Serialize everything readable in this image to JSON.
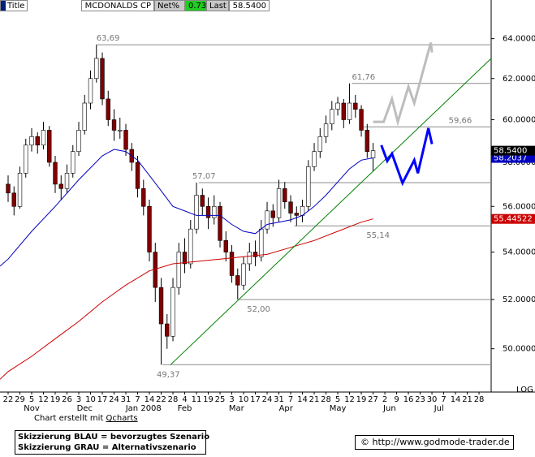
{
  "chart_data": {
    "type": "candlestick",
    "header": {
      "title": "Title",
      "symbol": "MCDONALDS CP",
      "net_label": "Net%",
      "net_value": 0.73,
      "last_label": "Last",
      "last_value": "58.5400"
    },
    "log_scale": true,
    "axis_label": "LOG",
    "up_color": "#ffffff",
    "down_color": "#800000",
    "xlim": [
      -0.69,
      41.03
    ],
    "ylim": [
      48.4,
      66.0
    ],
    "yticks": [
      {
        "value": 50,
        "label": "50.0000"
      },
      {
        "value": 52,
        "label": "52.0000"
      },
      {
        "value": 54,
        "label": "54.0000"
      },
      {
        "value": 56,
        "label": "56.0000"
      },
      {
        "value": 58,
        "label": "58.0000"
      },
      {
        "value": 60,
        "label": "60.0000"
      },
      {
        "value": 62,
        "label": "62.0000"
      },
      {
        "value": 64,
        "label": "64.0000"
      }
    ],
    "xticks": [
      {
        "value": 0,
        "label": "22"
      },
      {
        "value": 1,
        "label": "29"
      },
      {
        "value": 2,
        "label": "5"
      },
      {
        "value": 3,
        "label": "12"
      },
      {
        "value": 4,
        "label": "19"
      },
      {
        "value": 5,
        "label": "26"
      },
      {
        "value": 6,
        "label": "3"
      },
      {
        "value": 7,
        "label": "10"
      },
      {
        "value": 8,
        "label": "17"
      },
      {
        "value": 9,
        "label": "24"
      },
      {
        "value": 10,
        "label": "31"
      },
      {
        "value": 11,
        "label": "7"
      },
      {
        "value": 12,
        "label": "14"
      },
      {
        "value": 13,
        "label": "22"
      },
      {
        "value": 14,
        "label": "28"
      },
      {
        "value": 15,
        "label": "4"
      },
      {
        "value": 16,
        "label": "11"
      },
      {
        "value": 17,
        "label": "19"
      },
      {
        "value": 18,
        "label": "25"
      },
      {
        "value": 19,
        "label": "3"
      },
      {
        "value": 20,
        "label": "10"
      },
      {
        "value": 21,
        "label": "17"
      },
      {
        "value": 22,
        "label": "24"
      },
      {
        "value": 23,
        "label": "31"
      },
      {
        "value": 24,
        "label": "7"
      },
      {
        "value": 25,
        "label": "14"
      },
      {
        "value": 26,
        "label": "21"
      },
      {
        "value": 27,
        "label": "28"
      },
      {
        "value": 28,
        "label": "5"
      },
      {
        "value": 29,
        "label": "12"
      },
      {
        "value": 30,
        "label": "19"
      },
      {
        "value": 31,
        "label": "27"
      },
      {
        "value": 32,
        "label": "2"
      },
      {
        "value": 33,
        "label": "9"
      },
      {
        "value": 34,
        "label": "16"
      },
      {
        "value": 35,
        "label": "23"
      },
      {
        "value": 36,
        "label": "30"
      },
      {
        "value": 37,
        "label": "7"
      },
      {
        "value": 38,
        "label": "14"
      },
      {
        "value": 39,
        "label": "21"
      },
      {
        "value": 40,
        "label": "28"
      }
    ],
    "month_labels": [
      {
        "value": 2,
        "label": "Nov"
      },
      {
        "value": 6.5,
        "label": "Dec"
      },
      {
        "value": 11.5,
        "label": "Jan 2008"
      },
      {
        "value": 15,
        "label": "Feb"
      },
      {
        "value": 19.4,
        "label": "Mar"
      },
      {
        "value": 23.6,
        "label": "Apr"
      },
      {
        "value": 28,
        "label": "May"
      },
      {
        "value": 32.4,
        "label": "Jun"
      },
      {
        "value": 36.6,
        "label": "Jul"
      }
    ],
    "x": [
      0,
      0.5,
      1,
      1.5,
      2,
      2.5,
      3,
      3.5,
      4,
      4.5,
      5,
      5.5,
      6,
      6.5,
      7,
      7.5,
      8,
      8.5,
      9,
      9.5,
      10,
      10.5,
      11,
      11.5,
      12,
      12.5,
      13,
      13.5,
      14,
      14.5,
      15,
      15.5,
      16,
      16.5,
      17,
      17.5,
      18,
      18.5,
      19,
      19.5,
      20,
      20.5,
      21,
      21.5,
      22,
      22.5,
      23,
      23.5,
      24,
      24.5,
      25,
      25.5,
      26,
      26.5,
      27,
      27.5,
      28,
      28.5,
      29,
      29.5,
      30,
      30.5,
      31
    ],
    "ohlc": [
      [
        57.0,
        57.4,
        56.2,
        56.6
      ],
      [
        56.6,
        56.9,
        55.6,
        56.0
      ],
      [
        56.0,
        57.8,
        55.9,
        57.5
      ],
      [
        57.5,
        59.1,
        57.3,
        58.8
      ],
      [
        58.8,
        59.6,
        58.5,
        59.2
      ],
      [
        59.2,
        59.4,
        58.4,
        58.8
      ],
      [
        58.8,
        59.9,
        58.6,
        59.5
      ],
      [
        59.5,
        59.7,
        57.8,
        58.0
      ],
      [
        58.0,
        58.3,
        56.6,
        57.0
      ],
      [
        57.0,
        57.4,
        56.3,
        56.8
      ],
      [
        56.8,
        57.9,
        56.6,
        57.5
      ],
      [
        57.5,
        58.8,
        57.3,
        58.5
      ],
      [
        58.5,
        59.9,
        58.3,
        59.5
      ],
      [
        59.5,
        61.2,
        59.3,
        60.8
      ],
      [
        60.8,
        62.4,
        60.5,
        62.0
      ],
      [
        62.0,
        63.69,
        61.8,
        63.0
      ],
      [
        63.0,
        63.3,
        60.7,
        61.0
      ],
      [
        61.0,
        61.4,
        59.7,
        60.0
      ],
      [
        60.0,
        60.5,
        59.0,
        59.5
      ],
      [
        59.5,
        60.1,
        59.1,
        59.5
      ],
      [
        59.5,
        59.8,
        58.3,
        58.6
      ],
      [
        58.6,
        58.9,
        57.6,
        58.0
      ],
      [
        58.0,
        58.3,
        56.4,
        56.8
      ],
      [
        56.8,
        57.2,
        55.6,
        56.0
      ],
      [
        56.0,
        56.3,
        53.6,
        54.0
      ],
      [
        54.0,
        54.4,
        51.9,
        52.5
      ],
      [
        52.5,
        52.9,
        49.37,
        51.0
      ],
      [
        51.0,
        51.4,
        50.0,
        50.5
      ],
      [
        50.5,
        52.9,
        50.3,
        52.5
      ],
      [
        52.5,
        54.4,
        52.2,
        54.0
      ],
      [
        54.0,
        54.6,
        53.1,
        53.5
      ],
      [
        53.5,
        55.4,
        53.3,
        55.0
      ],
      [
        55.0,
        57.07,
        54.8,
        56.5
      ],
      [
        56.5,
        56.8,
        55.6,
        56.0
      ],
      [
        56.0,
        56.4,
        55.0,
        55.5
      ],
      [
        55.5,
        56.5,
        55.2,
        56.0
      ],
      [
        56.0,
        56.2,
        54.2,
        54.5
      ],
      [
        54.5,
        54.9,
        53.6,
        54.0
      ],
      [
        54.0,
        54.3,
        52.7,
        53.0
      ],
      [
        53.0,
        53.3,
        52.0,
        52.6
      ],
      [
        52.6,
        53.8,
        52.4,
        53.5
      ],
      [
        53.5,
        54.4,
        53.2,
        54.0
      ],
      [
        54.0,
        54.5,
        53.4,
        53.8
      ],
      [
        53.8,
        55.4,
        53.6,
        55.0
      ],
      [
        55.0,
        56.2,
        54.8,
        55.8
      ],
      [
        55.8,
        56.1,
        55.1,
        55.5
      ],
      [
        55.5,
        57.2,
        55.3,
        56.8
      ],
      [
        56.8,
        57.1,
        55.9,
        56.2
      ],
      [
        56.2,
        56.5,
        55.3,
        55.7
      ],
      [
        55.7,
        56.0,
        55.14,
        55.6
      ],
      [
        55.6,
        56.3,
        55.3,
        56.0
      ],
      [
        56.0,
        58.1,
        55.8,
        57.8
      ],
      [
        57.8,
        58.9,
        57.6,
        58.5
      ],
      [
        58.5,
        59.6,
        58.2,
        59.2
      ],
      [
        59.2,
        60.2,
        58.9,
        59.8
      ],
      [
        59.8,
        60.9,
        59.5,
        60.5
      ],
      [
        60.5,
        61.1,
        60.2,
        60.8
      ],
      [
        60.8,
        61.0,
        59.6,
        60.0
      ],
      [
        60.0,
        61.76,
        59.8,
        60.8
      ],
      [
        60.8,
        61.2,
        60.1,
        60.5
      ],
      [
        60.5,
        60.7,
        59.2,
        59.5
      ],
      [
        59.5,
        59.8,
        58.2,
        58.5
      ],
      [
        58.2,
        58.9,
        57.6,
        58.54
      ]
    ],
    "series": [
      {
        "color": "#0000c0",
        "width": 1,
        "x": [
          -0.69,
          0,
          2,
          4,
          6,
          8,
          9,
          10,
          11,
          12,
          13,
          14,
          16,
          18,
          19,
          20,
          21,
          22,
          24,
          25,
          26,
          27,
          28,
          29,
          30,
          31
        ],
        "values": [
          53.4,
          53.7,
          54.9,
          56.0,
          57.2,
          58.3,
          58.6,
          58.5,
          58.1,
          57.4,
          56.7,
          56.0,
          55.6,
          55.6,
          55.2,
          54.9,
          54.8,
          55.2,
          55.4,
          55.6,
          56.0,
          56.5,
          57.1,
          57.7,
          58.1,
          58.2037
        ]
      },
      {
        "color": "#cc0000",
        "width": 1,
        "x": [
          -0.69,
          0,
          2,
          4,
          6,
          8,
          10,
          12,
          14,
          16,
          18,
          20,
          22,
          24,
          26,
          28,
          30,
          31
        ],
        "values": [
          48.8,
          49.1,
          49.7,
          50.4,
          51.1,
          51.9,
          52.6,
          53.2,
          53.5,
          53.6,
          53.7,
          53.8,
          53.9,
          54.2,
          54.5,
          54.9,
          55.3,
          55.44522
        ]
      },
      {
        "color": "#008000",
        "width": 1,
        "x": [
          13.8,
          41.03
        ],
        "values": [
          49.37,
          63.0
        ]
      },
      {
        "color": "#bdbdbd",
        "width": 3,
        "x": [
          31.0,
          31.9,
          32.6,
          33.1,
          34.0,
          34.5,
          35.9,
          36.0
        ],
        "values": [
          59.9,
          59.9,
          61.0,
          59.9,
          61.6,
          60.8,
          63.8,
          63.3
        ]
      },
      {
        "color": "#0000ff",
        "width": 3,
        "x": [
          31.7,
          32.2,
          32.6,
          33.5,
          34.5,
          34.8,
          35.7,
          36.0
        ],
        "values": [
          58.8,
          58.06,
          58.4,
          57.05,
          58.1,
          57.5,
          59.6,
          58.85
        ]
      }
    ],
    "levels": [
      {
        "value": 63.69,
        "label": "63,69",
        "x": 7.5
      },
      {
        "value": 61.76,
        "label": "61,76",
        "x": 29.2
      },
      {
        "value": 59.66,
        "label": "59,66",
        "x": 29.9
      },
      {
        "value": 57.07,
        "label": "57,07",
        "x": 16.2
      },
      {
        "value": 55.14,
        "label": "55,14",
        "x": 24.3
      },
      {
        "value": 52.0,
        "label": "52,00",
        "x": 19.6
      },
      {
        "value": 49.37,
        "label": "49,37",
        "x": 13.1
      }
    ],
    "right_labels": [
      {
        "value": 58.2037,
        "label": "58.2037",
        "color": "#0000c0"
      },
      {
        "value": 58.54,
        "label": "58.5400",
        "color": "#000000"
      },
      {
        "value": 55.44522,
        "label": "55.44522",
        "color": "#cc0000"
      }
    ],
    "footer": {
      "credit": "Chart erstellt mit",
      "credit_link": "Qcharts",
      "notes": [
        "Skizzierung BLAU = bevorzugtes Szenario",
        "Skizzierung GRAU = Alternativszenario"
      ],
      "url": "© http://www.godmode-trader.de"
    }
  }
}
